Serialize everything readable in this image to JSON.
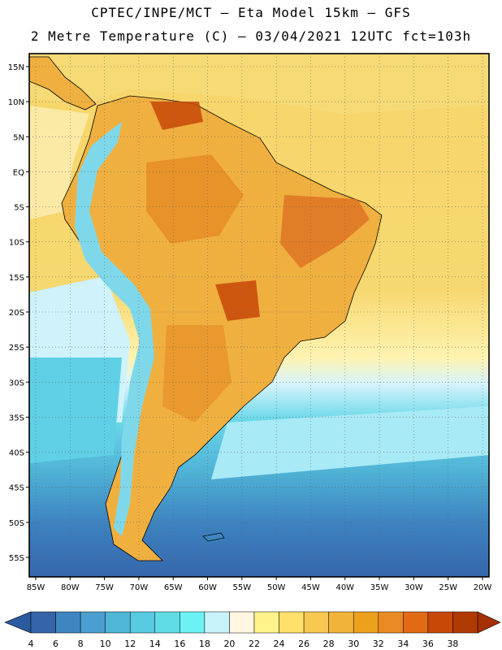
{
  "header": {
    "line1": "CPTEC/INPE/MCT –  Eta Model 15km – GFS",
    "line2": "2 Metre Temperature (C) – 03/04/2021 12UTC fct=103h"
  },
  "map": {
    "lat_labels": [
      "15N",
      "10N",
      "5N",
      "EQ",
      "5S",
      "10S",
      "15S",
      "20S",
      "25S",
      "30S",
      "35S",
      "40S",
      "45S",
      "50S",
      "55S"
    ],
    "lon_labels": [
      "85W",
      "80W",
      "75W",
      "70W",
      "65W",
      "60W",
      "55W",
      "50W",
      "45W",
      "40W",
      "35W",
      "30W",
      "25W",
      "20W"
    ],
    "lat_range": [
      15,
      -55
    ],
    "lon_range": [
      -85,
      -20
    ]
  },
  "colorbar": {
    "labels": [
      "4",
      "6",
      "8",
      "10",
      "12",
      "14",
      "16",
      "18",
      "20",
      "22",
      "24",
      "26",
      "28",
      "30",
      "32",
      "34",
      "36",
      "38"
    ],
    "colors": [
      "#3565a8",
      "#3f86c0",
      "#4a9fd0",
      "#4fb6d8",
      "#57c9e0",
      "#5fdce6",
      "#6df2f4",
      "#c8f2fa",
      "#fff7e0",
      "#fff28a",
      "#ffe06a",
      "#f6c850",
      "#f0b43a",
      "#eca11e",
      "#e98a22",
      "#e16a14",
      "#c84808",
      "#b03a04"
    ],
    "low_color": "#2a5aa0",
    "high_color": "#a53003"
  }
}
